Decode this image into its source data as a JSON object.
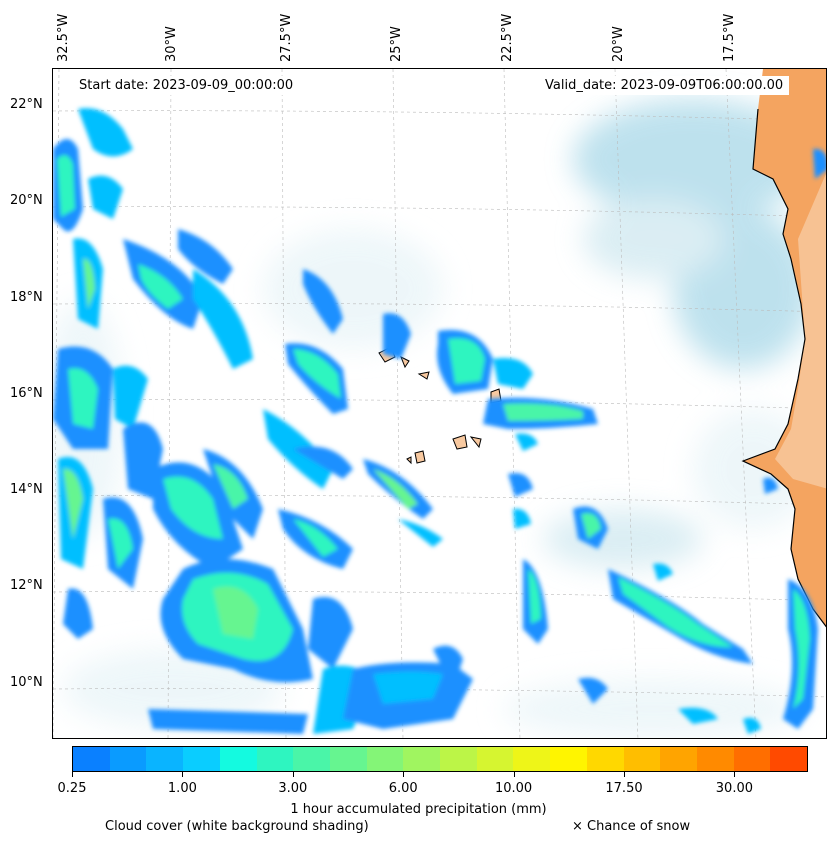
{
  "map": {
    "start_date": "Start date: 2023-09-09_00:00:00",
    "valid_date": "Valid_date: 2023-09-09T06:00:00.00",
    "lon_labels": [
      "32.5°W",
      "30°W",
      "27.5°W",
      "25°W",
      "22.5°W",
      "20°W",
      "17.5°W"
    ],
    "lat_labels": [
      "22°N",
      "20°N",
      "18°N",
      "16°N",
      "14°N",
      "12°N",
      "10°N"
    ]
  },
  "colorbar": {
    "colors": [
      "#0a80ff",
      "#0a9bff",
      "#0ab4ff",
      "#0acdff",
      "#14fae0",
      "#2ef5c0",
      "#4af5a8",
      "#66f590",
      "#84f577",
      "#a0f560",
      "#bcf547",
      "#d6f530",
      "#eef518",
      "#fff500",
      "#ffd800",
      "#ffbe00",
      "#ffa400",
      "#ff8a00",
      "#ff6e00",
      "#ff4a00"
    ],
    "tick_labels": [
      "0.25",
      "1.00",
      "3.00",
      "6.00",
      "10.00",
      "17.50",
      "30.00"
    ],
    "label": "1 hour accumulated precipitation (mm)"
  },
  "notes": {
    "cloud": "Cloud cover (white background shading)",
    "snow": "× Chance of snow"
  },
  "colors": {
    "land": "#f4a460",
    "land_light": "#f8c9a0",
    "cloud_blue": "#a8d8e8",
    "precip_dark": "#1e90ff",
    "precip_mid": "#00bfff",
    "precip_light": "#2ef5c0"
  }
}
